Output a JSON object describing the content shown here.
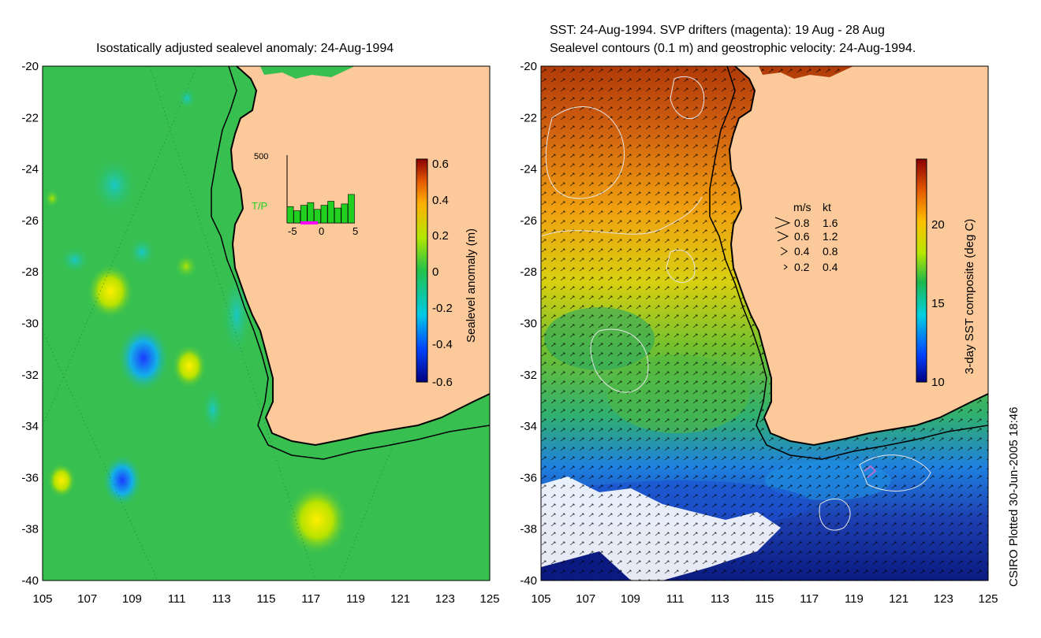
{
  "left_map": {
    "title": "Isostatically adjusted sealevel anomaly: 24-Aug-1994",
    "colorbar": {
      "label": "Sealevel anomaly (m)",
      "ticks": [
        "0.6",
        "0.4",
        "0.2",
        "0",
        "-0.2",
        "-0.4",
        "-0.6"
      ]
    },
    "inset": {
      "y_max_label": "500",
      "mission_label": "T/P",
      "x_ticks": [
        "-5",
        "0",
        "5"
      ],
      "bar_values": [
        120,
        90,
        130,
        150,
        100,
        130,
        160,
        110,
        140,
        210
      ],
      "y_max": 500
    }
  },
  "right_map": {
    "title_line1": "SST: 24-Aug-1994. SVP drifters (magenta): 19 Aug - 28 Aug",
    "title_line2": "Sealevel contours (0.1 m) and geostrophic velocity: 24-Aug-1994.",
    "colorbar": {
      "label": "3-day SST composite (deg C)",
      "ticks": [
        "20",
        "15",
        "10"
      ],
      "range": [
        10,
        24
      ]
    },
    "velocity_legend": {
      "header_ms": "m/s",
      "header_kt": "kt",
      "rows": [
        {
          "ms": "0.8",
          "kt": "1.6"
        },
        {
          "ms": "0.6",
          "kt": "1.2"
        },
        {
          "ms": "0.4",
          "kt": "0.8"
        },
        {
          "ms": "0.2",
          "kt": "0.4"
        }
      ]
    }
  },
  "axes": {
    "y_ticks": [
      "-20",
      "-22",
      "-24",
      "-26",
      "-28",
      "-30",
      "-32",
      "-34",
      "-36",
      "-38",
      "-40"
    ],
    "x_ticks": [
      "105",
      "107",
      "109",
      "111",
      "113",
      "115",
      "117",
      "119",
      "121",
      "123",
      "125"
    ]
  },
  "credit": "CSIRO Plotted 30-Jun-2005 18:46",
  "colors": {
    "land": "#fbc99a",
    "ocean_mid": "#37c050",
    "coast": "#000000"
  }
}
